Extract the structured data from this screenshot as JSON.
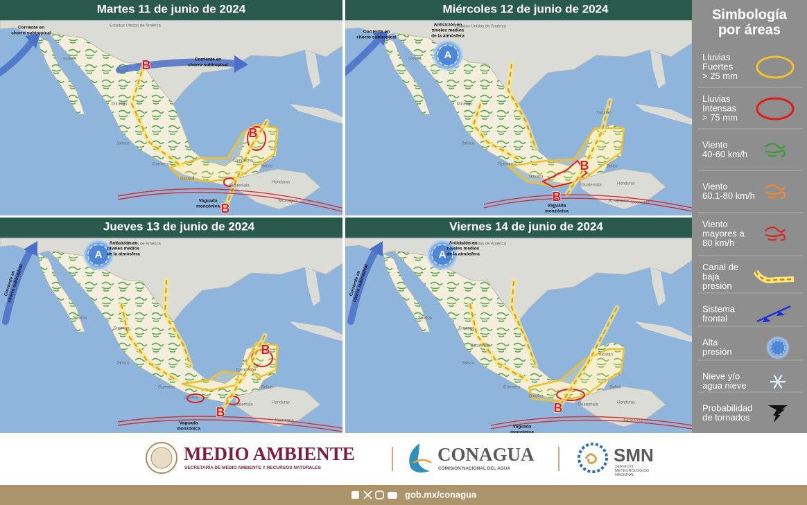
{
  "panels": [
    {
      "title": "Martes 11 de junio de 2024",
      "labels": [
        "Corriente en",
        "chorro subtropical",
        "Estados Unidos de América",
        "Corriente en",
        "chorro subtropical",
        "Sonora",
        "Durango",
        "Jalisco",
        "Guerrero",
        "Oaxaca",
        "Campeche",
        "Belice",
        "Guatemala",
        "Honduras",
        "Nicaragua",
        "Vaguada",
        "monzónica",
        "B",
        "B",
        "B"
      ]
    },
    {
      "title": "Miércoles 12 de junio de 2024",
      "labels": [
        "Corriente en",
        "chorro subtropical",
        "Anticición en",
        "niveles medios",
        "de la atmósfera",
        "A",
        "Estados Unidos de América",
        "Sonora",
        "Durango",
        "Jalisco",
        "Guerrero",
        "Oaxaca",
        "Yucatán",
        "Belice",
        "Guatemala",
        "Honduras",
        "El salvador",
        "Nicaragua",
        "Vaguada",
        "monzónica",
        "B",
        "B"
      ]
    },
    {
      "title": "Jueves 13 de junio de 2024",
      "labels": [
        "Corriente en",
        "chorro subtropical",
        "Anticición en",
        "niveles medios",
        "de la atmósfera",
        "A",
        "Estados Unidos de América",
        "Sinaloa",
        "Durango",
        "Jalisco",
        "Guerrero",
        "Oaxaca",
        "Campeche",
        "Belice",
        "Guatemala",
        "Honduras",
        "Nicaragua",
        "Vaguada",
        "monzónica",
        "B",
        "B"
      ]
    },
    {
      "title": "Viernes 14 de junio de 2024",
      "labels": [
        "Corriente en",
        "chorro subtropical",
        "Anticición en",
        "niveles medios",
        "de la atmósfera",
        "A",
        "Estados Unidos de América",
        "Sinaloa",
        "Durango",
        "Zacatecas",
        "Jalisco",
        "Guerrero",
        "Oaxaca",
        "Yucatán",
        "Belice",
        "Guatemala",
        "Honduras",
        "Nicaragua",
        "Vaguada",
        "monzónica",
        "B"
      ]
    }
  ],
  "legend": {
    "title": [
      "Simbología",
      "por áreas"
    ],
    "items": [
      {
        "lines": [
          "Lluvias",
          "Fuertes",
          "> 25 mm"
        ]
      },
      {
        "lines": [
          "Lluvias",
          "Intensas",
          "> 75 mm"
        ]
      },
      {
        "lines": [
          "Viento",
          "40-60 km/h"
        ]
      },
      {
        "lines": [
          "Viento",
          "60.1-80 km/h"
        ]
      },
      {
        "lines": [
          "Viento",
          "mayores a",
          "80 km/h"
        ]
      },
      {
        "lines": [
          "Canal de",
          "baja",
          "presión"
        ]
      },
      {
        "lines": [
          "Sistema",
          "frontal"
        ]
      },
      {
        "lines": [
          "Alta",
          "presión"
        ]
      },
      {
        "lines": [
          "Nieve y/o",
          "agua nieve"
        ]
      },
      {
        "lines": [
          "Probabilidad",
          "de tornados"
        ]
      }
    ]
  },
  "footer": {
    "secretaria": "MEDIO AMBIENTE",
    "secretaria_sub": "SECRETARÍA DE MEDIO AMBIENTE Y RECURSOS NATURALES",
    "conagua": "CONAGUA",
    "conagua_sub": "COMISIÓN NACIONAL DEL AGUA",
    "smn": "SMN",
    "smn_sub": [
      "SERVICIO",
      "METEOROLÓGICO",
      "NACIONAL"
    ],
    "url": "gob.mx/conagua"
  }
}
